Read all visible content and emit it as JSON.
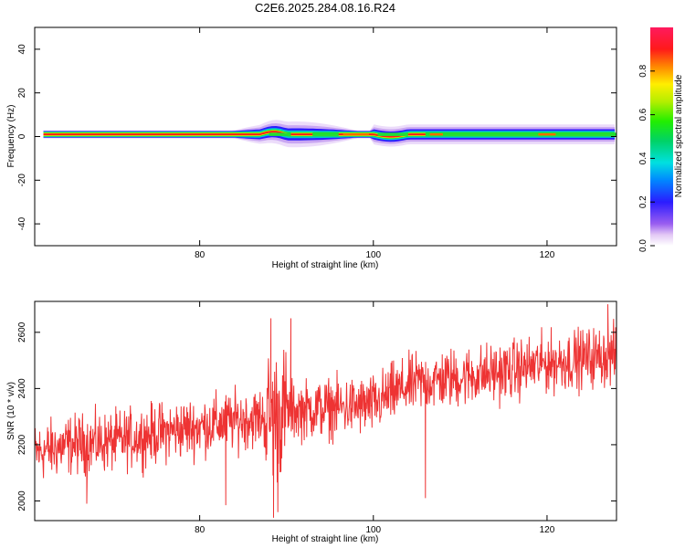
{
  "chart_data": [
    {
      "type": "heatmap",
      "title": "C2E6.2025.284.08.16.R24",
      "xlabel": "Height of straight line (km)",
      "ylabel": "Frequency (Hz)",
      "xlim": [
        61,
        128
      ],
      "ylim": [
        -50,
        50
      ],
      "xticks": [
        80,
        100,
        120
      ],
      "yticks": [
        40,
        20,
        0,
        -20,
        -40
      ],
      "colorbar": {
        "label": "Normalized spectral amplitude",
        "range": [
          0,
          1
        ],
        "ticks": [
          "0.0",
          "0.2",
          "0.4",
          "0.6",
          "0.8"
        ]
      },
      "band": {
        "center_frequency_hz": 1,
        "description": "narrow high-amplitude band centered near 1 Hz across all heights"
      }
    },
    {
      "type": "line",
      "xlabel": "Height of straight line (km)",
      "ylabel": "SNR (10 * v/v)",
      "xlim": [
        61,
        128
      ],
      "ylim": [
        1930,
        2710
      ],
      "xticks": [
        80,
        100,
        120
      ],
      "yticks": [
        2000,
        2200,
        2400,
        2600
      ],
      "series": [
        {
          "name": "SNR",
          "color": "#ee3333",
          "trend_x": [
            61,
            65,
            70,
            75,
            80,
            85,
            88,
            90,
            95,
            100,
            102,
            105,
            110,
            115,
            120,
            125,
            128
          ],
          "trend_y": [
            2170,
            2200,
            2210,
            2240,
            2265,
            2290,
            2300,
            2320,
            2330,
            2340,
            2380,
            2420,
            2440,
            2460,
            2490,
            2510,
            2520
          ],
          "noise_amplitude": 80,
          "samples": 1400,
          "notable_points": [
            {
              "x": 88.2,
              "y": 2650
            },
            {
              "x": 88.5,
              "y": 1940
            },
            {
              "x": 89.0,
              "y": 1960
            },
            {
              "x": 106.0,
              "y": 2010
            },
            {
              "x": 83.0,
              "y": 1985
            },
            {
              "x": 67.0,
              "y": 1990
            },
            {
              "x": 90.5,
              "y": 2650
            },
            {
              "x": 127.0,
              "y": 2700
            }
          ]
        }
      ]
    }
  ]
}
